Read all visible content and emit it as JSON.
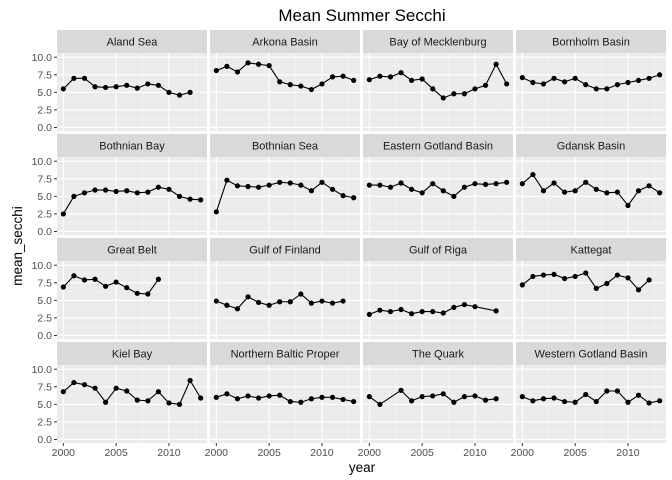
{
  "chart_data": {
    "type": "line",
    "title": "Mean Summer Secchi",
    "xlabel": "year",
    "ylabel": "mean_secchi",
    "xlim": [
      1999.4,
      2013.6
    ],
    "ylim": [
      -0.5,
      10.6
    ],
    "x_ticks": [
      2000,
      2005,
      2010
    ],
    "x_tick_labels": [
      "2000",
      "2005",
      "2010"
    ],
    "y_ticks": [
      0,
      2.5,
      5,
      7.5,
      10
    ],
    "y_tick_labels": [
      "0.0",
      "2.5",
      "5.0",
      "7.5",
      "10.0"
    ],
    "grid": true,
    "colors": {
      "panel_bg": "#ebebeb",
      "strip_bg": "#d9d9d9",
      "grid_major": "#ffffff",
      "grid_minor": "#f5f5f5",
      "series": "#000000"
    },
    "panels": [
      {
        "name": "Aland Sea",
        "x": [
          2000,
          2001,
          2002,
          2003,
          2004,
          2005,
          2006,
          2007,
          2008,
          2009,
          2010,
          2011,
          2012
        ],
        "y": [
          5.5,
          7.0,
          7.0,
          5.8,
          5.7,
          5.8,
          6.0,
          5.6,
          6.2,
          6.0,
          5.0,
          4.6,
          5.0
        ]
      },
      {
        "name": "Arkona Basin",
        "x": [
          2000,
          2001,
          2002,
          2003,
          2004,
          2005,
          2006,
          2007,
          2008,
          2009,
          2010,
          2011,
          2012,
          2013
        ],
        "y": [
          8.1,
          8.7,
          7.9,
          9.2,
          9.0,
          8.8,
          6.5,
          6.1,
          5.9,
          5.4,
          6.2,
          7.2,
          7.3,
          6.7
        ]
      },
      {
        "name": "Bay of Mecklenburg",
        "x": [
          2000,
          2001,
          2002,
          2003,
          2004,
          2005,
          2006,
          2007,
          2008,
          2009,
          2010,
          2011,
          2012,
          2013
        ],
        "y": [
          6.8,
          7.3,
          7.2,
          7.8,
          6.7,
          6.9,
          5.5,
          4.2,
          4.8,
          4.8,
          5.5,
          6.0,
          9.0,
          6.2
        ]
      },
      {
        "name": "Bornholm Basin",
        "x": [
          2000,
          2001,
          2002,
          2003,
          2004,
          2005,
          2006,
          2007,
          2008,
          2009,
          2010,
          2011,
          2012,
          2013
        ],
        "y": [
          7.1,
          6.4,
          6.2,
          7.0,
          6.5,
          7.0,
          6.1,
          5.5,
          5.5,
          6.1,
          6.4,
          6.7,
          7.0,
          7.5
        ]
      },
      {
        "name": "Bothnian Bay",
        "x": [
          2000,
          2001,
          2002,
          2003,
          2004,
          2005,
          2006,
          2007,
          2008,
          2009,
          2010,
          2011,
          2012,
          2013
        ],
        "y": [
          2.5,
          5.0,
          5.5,
          5.9,
          5.9,
          5.7,
          5.8,
          5.5,
          5.6,
          6.3,
          6.0,
          5.0,
          4.6,
          4.5
        ]
      },
      {
        "name": "Bothnian Sea",
        "x": [
          2000,
          2001,
          2002,
          2003,
          2004,
          2005,
          2006,
          2007,
          2008,
          2009,
          2010,
          2011,
          2012,
          2013
        ],
        "y": [
          2.8,
          7.3,
          6.5,
          6.4,
          6.3,
          6.6,
          7.0,
          6.9,
          6.6,
          5.8,
          7.0,
          6.0,
          5.1,
          4.8
        ]
      },
      {
        "name": "Eastern Gotland Basin",
        "x": [
          2000,
          2001,
          2002,
          2003,
          2004,
          2005,
          2006,
          2007,
          2008,
          2009,
          2010,
          2011,
          2012,
          2013
        ],
        "y": [
          6.6,
          6.6,
          6.3,
          6.9,
          6.0,
          5.5,
          6.8,
          5.8,
          5.0,
          6.3,
          6.8,
          6.7,
          6.8,
          7.0
        ]
      },
      {
        "name": "Gdansk Basin",
        "x": [
          2000,
          2001,
          2002,
          2003,
          2004,
          2005,
          2006,
          2007,
          2008,
          2009,
          2010,
          2011,
          2012,
          2013
        ],
        "y": [
          6.8,
          8.1,
          5.8,
          6.9,
          5.6,
          5.8,
          7.0,
          6.0,
          5.5,
          5.6,
          3.7,
          5.8,
          6.5,
          5.5
        ]
      },
      {
        "name": "Great Belt",
        "x": [
          2000,
          2001,
          2002,
          2003,
          2004,
          2005,
          2006,
          2007,
          2008,
          2009
        ],
        "y": [
          6.9,
          8.5,
          7.9,
          8.0,
          7.0,
          7.6,
          6.8,
          6.0,
          5.9,
          8.0
        ]
      },
      {
        "name": "Gulf of Finland",
        "x": [
          2000,
          2001,
          2002,
          2003,
          2004,
          2005,
          2006,
          2007,
          2008,
          2009,
          2010,
          2011,
          2012
        ],
        "y": [
          4.9,
          4.3,
          3.8,
          5.5,
          4.7,
          4.3,
          4.8,
          4.8,
          5.9,
          4.6,
          4.9,
          4.6,
          4.9
        ]
      },
      {
        "name": "Gulf of Riga",
        "x": [
          2000,
          2001,
          2002,
          2003,
          2004,
          2005,
          2006,
          2007,
          2008,
          2009,
          2010,
          2012
        ],
        "y": [
          3.0,
          3.6,
          3.4,
          3.7,
          3.1,
          3.4,
          3.4,
          3.2,
          4.0,
          4.4,
          4.1,
          3.5
        ]
      },
      {
        "name": "Kattegat",
        "x": [
          2000,
          2001,
          2002,
          2003,
          2004,
          2005,
          2006,
          2007,
          2008,
          2009,
          2010,
          2011,
          2012
        ],
        "y": [
          7.2,
          8.4,
          8.6,
          8.7,
          8.1,
          8.4,
          8.9,
          6.7,
          7.4,
          8.6,
          8.2,
          6.5,
          7.9
        ]
      },
      {
        "name": "Kiel Bay",
        "x": [
          2000,
          2001,
          2002,
          2003,
          2004,
          2005,
          2006,
          2007,
          2008,
          2009,
          2010,
          2011,
          2012,
          2013
        ],
        "y": [
          6.8,
          8.1,
          7.8,
          7.3,
          5.3,
          7.3,
          6.9,
          5.6,
          5.5,
          6.8,
          5.2,
          5.0,
          8.4,
          5.9
        ]
      },
      {
        "name": "Northern Baltic Proper",
        "x": [
          2000,
          2001,
          2002,
          2003,
          2004,
          2005,
          2006,
          2007,
          2008,
          2009,
          2010,
          2011,
          2012,
          2013
        ],
        "y": [
          6.0,
          6.5,
          5.8,
          6.2,
          5.9,
          6.2,
          6.3,
          5.4,
          5.3,
          5.8,
          6.0,
          6.0,
          5.7,
          5.4
        ]
      },
      {
        "name": "The Quark",
        "x": [
          2000,
          2001,
          2003,
          2004,
          2005,
          2006,
          2007,
          2008,
          2009,
          2010,
          2011,
          2012
        ],
        "y": [
          6.1,
          5.0,
          7.0,
          5.5,
          6.1,
          6.2,
          6.5,
          5.3,
          6.1,
          6.2,
          5.6,
          5.8
        ]
      },
      {
        "name": "Western Gotland Basin",
        "x": [
          2000,
          2001,
          2002,
          2003,
          2004,
          2005,
          2006,
          2007,
          2008,
          2009,
          2010,
          2011,
          2012,
          2013
        ],
        "y": [
          6.1,
          5.5,
          5.8,
          5.9,
          5.4,
          5.3,
          6.4,
          5.4,
          6.9,
          6.9,
          5.3,
          6.3,
          5.2,
          5.5
        ]
      }
    ]
  }
}
